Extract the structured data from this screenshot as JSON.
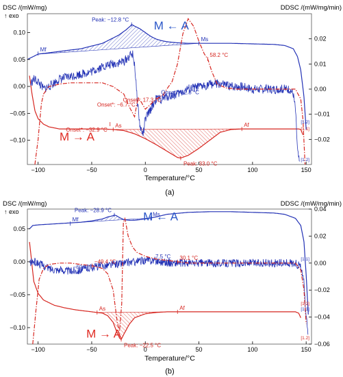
{
  "colors": {
    "blue": "#2231b5",
    "red": "#d6251f",
    "axis": "#000000",
    "frame": "#555555",
    "m_to_a_red": "#e02a22",
    "m_from_a_blue": "#2a56c8"
  },
  "chart_data": [
    {
      "type": "line",
      "panel_label": "(a)",
      "xlabel": "Temperature/°C",
      "ylabel_left": "DSC /(mW/mg)",
      "ylabel_right": "DDSC /(mW/mg/min)",
      "exo_label": "↑ exo",
      "xlim": [
        -110,
        155
      ],
      "ylim_left": [
        -0.145,
        0.135
      ],
      "ylim_right": [
        -0.03,
        0.03
      ],
      "xticks": [
        -100,
        -50,
        0,
        50,
        100,
        150
      ],
      "yticks_left": [
        0.1,
        0.05,
        0.0,
        -0.05,
        -0.1
      ],
      "yticks_right": [
        0.02,
        0.01,
        0.0,
        -0.01,
        -0.02
      ],
      "cycle_labels": [
        "[1.2]",
        "[1.1]",
        "[1.2]"
      ],
      "series": [
        {
          "name": "",
          "axis": "left",
          "color": "blue",
          "style": "solid",
          "x": [
            -110,
            -100,
            -80,
            -60,
            -40,
            -25,
            -18,
            -14,
            -12.8,
            -10,
            -5,
            0,
            5,
            10,
            15,
            20,
            25,
            30,
            40,
            50,
            60,
            80,
            100,
            120,
            130,
            138,
            142,
            145,
            148,
            150
          ],
          "y": [
            0.05,
            0.06,
            0.065,
            0.07,
            0.08,
            0.095,
            0.105,
            0.112,
            0.115,
            0.112,
            0.107,
            0.1,
            0.093,
            0.088,
            0.085,
            0.083,
            0.082,
            0.081,
            0.08,
            0.08,
            0.08,
            0.08,
            0.079,
            0.078,
            0.076,
            0.07,
            0.055,
            0.03,
            -0.02,
            -0.08
          ]
        },
        {
          "name": "",
          "axis": "left",
          "color": "red",
          "style": "solid",
          "x": [
            -108,
            -106,
            -103,
            -100,
            -95,
            -90,
            -80,
            -70,
            -60,
            -50,
            -40,
            -30,
            -20,
            -10,
            0,
            10,
            20,
            30,
            33,
            40,
            50,
            60,
            70,
            80,
            90,
            100,
            110,
            120,
            130,
            135,
            140,
            143,
            145,
            147
          ],
          "y": [
            0.02,
            -0.01,
            -0.045,
            -0.06,
            -0.07,
            -0.075,
            -0.079,
            -0.079,
            -0.079,
            -0.079,
            -0.079,
            -0.08,
            -0.082,
            -0.088,
            -0.097,
            -0.108,
            -0.12,
            -0.132,
            -0.133,
            -0.128,
            -0.115,
            -0.1,
            -0.085,
            -0.08,
            -0.079,
            -0.079,
            -0.079,
            -0.079,
            -0.079,
            -0.079,
            -0.079,
            -0.079,
            -0.08,
            -0.09
          ]
        },
        {
          "name": "",
          "axis": "right",
          "color": "blue",
          "style": "noisy",
          "x": [
            -107,
            -104,
            -100,
            -95,
            -90,
            -80,
            -70,
            -60,
            -50,
            -40,
            -30,
            -20,
            -15,
            -12,
            -10,
            -8,
            -5,
            -2,
            0,
            5,
            10,
            15,
            20,
            30,
            40,
            52.8,
            60,
            70,
            80,
            90,
            100,
            110,
            120,
            130,
            135,
            138,
            140,
            142,
            144
          ],
          "y": [
            0.002,
            0.004,
            0.003,
            0.0,
            0.001,
            0.004,
            0.005,
            0.006,
            0.007,
            0.009,
            0.01,
            0.011,
            0.013,
            0.014,
            0.01,
            -0.002,
            -0.015,
            -0.018,
            -0.012,
            -0.008,
            -0.004,
            -0.004,
            -0.003,
            -0.002,
            0.0,
            0.001,
            0.002,
            0.002,
            0.001,
            0.001,
            0.0,
            0.0,
            0.0,
            0.0,
            0.0,
            -0.002,
            -0.008,
            -0.025,
            -0.03
          ]
        },
        {
          "name": "",
          "axis": "right",
          "color": "red",
          "style": "dashdot",
          "x": [
            -103,
            -100,
            -97,
            -95,
            -90,
            -80,
            -70,
            -60,
            -50,
            -40,
            -30,
            -20,
            -15,
            -10,
            -8,
            -6.7,
            -4,
            0,
            5,
            10,
            17.3,
            20,
            25,
            30,
            35,
            40,
            45,
            50,
            55,
            58.2,
            62,
            67,
            75,
            85,
            100,
            120,
            140,
            145,
            147,
            149
          ],
          "y": [
            -0.03,
            -0.02,
            -0.006,
            -0.002,
            0.001,
            0.002,
            0.0025,
            0.0025,
            0.0025,
            0.0025,
            0.001,
            -0.002,
            -0.007,
            -0.011,
            -0.006,
            -0.004,
            -0.005,
            -0.008,
            -0.006,
            -0.004,
            -0.002,
            0.0,
            0.003,
            0.01,
            0.022,
            0.028,
            0.025,
            0.019,
            0.014,
            0.012,
            0.007,
            0.002,
            0.0005,
            0.0,
            0.0,
            0.0,
            0.0,
            -0.004,
            -0.012,
            -0.03
          ]
        }
      ],
      "annotations": [
        {
          "text": "Peak: −12.8 °C",
          "x": -12.8,
          "y": 0.115,
          "color": "blue",
          "axis": "left"
        },
        {
          "text": "M ← A",
          "x": 8,
          "y": 0.112,
          "color": "blue",
          "axis": "left",
          "large": true
        },
        {
          "text": "Mf",
          "x": -100,
          "y": 0.061,
          "color": "blue",
          "axis": "left"
        },
        {
          "text": "Ms",
          "x": 50,
          "y": 0.08,
          "color": "blue",
          "axis": "left"
        },
        {
          "text": "58.2 °C",
          "x": 58.2,
          "y": 0.012,
          "color": "red",
          "axis": "right"
        },
        {
          "text": "Onset*: 17.3 °C",
          "x": 17.3,
          "y": -0.002,
          "color": "red",
          "axis": "right"
        },
        {
          "text": "Onset*: −6.7 °C",
          "x": -6.7,
          "y": -0.004,
          "color": "red",
          "axis": "right"
        },
        {
          "text": "Onset*: −32.9 °C",
          "x": -32.9,
          "y": -0.07,
          "color": "red",
          "axis": "left"
        },
        {
          "text": "Onset*: 52.8 °C",
          "x": 52.8,
          "y": 0.001,
          "color": "blue",
          "axis": "right"
        },
        {
          "text": "As",
          "x": -30,
          "y": -0.08,
          "color": "red",
          "axis": "left"
        },
        {
          "text": "Af",
          "x": 90,
          "y": -0.079,
          "color": "red",
          "axis": "left"
        },
        {
          "text": "M → A",
          "x": -80,
          "y": -0.094,
          "color": "red",
          "axis": "left",
          "large": true
        },
        {
          "text": "Peak: 33.0 °C",
          "x": 33,
          "y": -0.133,
          "color": "red",
          "axis": "left"
        }
      ],
      "hatch_regions": [
        {
          "series_index": 0,
          "x_from": -100,
          "x_to": 50,
          "baseline": "linear",
          "color": "blue"
        },
        {
          "series_index": 1,
          "x_from": -30,
          "x_to": 90,
          "baseline": "linear",
          "color": "red"
        }
      ]
    },
    {
      "type": "line",
      "panel_label": "(b)",
      "xlabel": "Temperature/°C",
      "ylabel_left": "DSC /(mW/mg)",
      "ylabel_right": "DDSC /(mW/mg/min)",
      "exo_label": "↑ exo",
      "xlim": [
        -110,
        155
      ],
      "ylim_left": [
        -0.125,
        0.08
      ],
      "ylim_right": [
        -0.06,
        0.04
      ],
      "xticks": [
        -100,
        -50,
        0,
        50,
        100,
        150
      ],
      "yticks_left": [
        0.05,
        0.0,
        -0.05,
        -0.1
      ],
      "yticks_right": [
        0.04,
        0.02,
        0.0,
        -0.02,
        -0.04,
        -0.06
      ],
      "cycle_labels": [
        "[1.1]",
        "[1.2]",
        "[1.1]",
        "[1.2]"
      ],
      "series": [
        {
          "name": "",
          "axis": "left",
          "color": "blue",
          "style": "solid",
          "x": [
            -108,
            -105,
            -100,
            -80,
            -60,
            -50,
            -40,
            -35,
            -30,
            -28.9,
            -27,
            -24,
            -20,
            -15,
            -10,
            -5,
            0,
            10,
            20,
            40,
            60,
            80,
            100,
            120,
            130,
            140,
            145,
            148,
            150,
            152
          ],
          "y": [
            0.05,
            0.055,
            0.056,
            0.058,
            0.06,
            0.062,
            0.065,
            0.068,
            0.07,
            0.071,
            0.07,
            0.067,
            0.064,
            0.063,
            0.063,
            0.064,
            0.065,
            0.068,
            0.072,
            0.075,
            0.076,
            0.076,
            0.075,
            0.074,
            0.072,
            0.066,
            0.055,
            0.03,
            -0.02,
            -0.08
          ]
        },
        {
          "name": "",
          "axis": "left",
          "color": "red",
          "style": "solid",
          "x": [
            -108,
            -106,
            -104,
            -100,
            -95,
            -85,
            -75,
            -65,
            -55,
            -50,
            -45,
            -40,
            -35,
            -30,
            -27,
            -24,
            -22.5,
            -20,
            -15,
            -10,
            0,
            10,
            20,
            30,
            50,
            70,
            100,
            130,
            140,
            143,
            145
          ],
          "y": [
            0.03,
            0.0,
            -0.03,
            -0.048,
            -0.058,
            -0.066,
            -0.07,
            -0.073,
            -0.075,
            -0.076,
            -0.077,
            -0.078,
            -0.082,
            -0.092,
            -0.105,
            -0.116,
            -0.118,
            -0.11,
            -0.095,
            -0.085,
            -0.079,
            -0.077,
            -0.076,
            -0.076,
            -0.076,
            -0.076,
            -0.076,
            -0.076,
            -0.076,
            -0.078,
            -0.085
          ]
        },
        {
          "name": "",
          "axis": "right",
          "color": "blue",
          "style": "noisy",
          "x": [
            -108,
            -105,
            -100,
            -90,
            -80,
            -69.4,
            -60,
            -50,
            -40,
            -30,
            -20,
            -10,
            0,
            7.5,
            15,
            25,
            40,
            60,
            80,
            100,
            120,
            140,
            145,
            148,
            150,
            152
          ],
          "y": [
            0.0,
            0.001,
            0.0,
            -0.004,
            -0.005,
            -0.006,
            -0.005,
            -0.003,
            -0.002,
            -0.001,
            0.0,
            0.001,
            0.002,
            0.002,
            0.001,
            0.0,
            0.0,
            0.0,
            0.0,
            0.0,
            0.0,
            0.0,
            -0.003,
            -0.015,
            -0.04,
            -0.055
          ]
        },
        {
          "name": "",
          "axis": "right",
          "color": "red",
          "style": "dashdot",
          "x": [
            -105,
            -102,
            -99,
            -95,
            -90,
            -80,
            -70,
            -60,
            -49.4,
            -40,
            -35,
            -30,
            -26,
            -24,
            -22,
            -20.5,
            -19,
            -16,
            -12,
            -8,
            0,
            10,
            20,
            30.1,
            40,
            60,
            80,
            100,
            130,
            140,
            145,
            148,
            150
          ],
          "y": [
            -0.06,
            -0.035,
            -0.012,
            -0.004,
            -0.001,
            0.0,
            0.0,
            -0.001,
            -0.002,
            -0.004,
            -0.008,
            -0.02,
            -0.045,
            -0.05,
            -0.03,
            0.03,
            0.033,
            0.02,
            0.012,
            0.008,
            0.005,
            0.003,
            0.002,
            0.001,
            0.0,
            0.0,
            0.0,
            0.0,
            0.0,
            0.0,
            -0.005,
            -0.02,
            -0.045
          ]
        }
      ],
      "annotations": [
        {
          "text": "Peak: −28.9 °C",
          "x": -28.9,
          "y": 0.071,
          "color": "blue",
          "axis": "left"
        },
        {
          "text": "M ← A",
          "x": -2,
          "y": 0.068,
          "color": "blue",
          "axis": "left",
          "large": true
        },
        {
          "text": "Mf",
          "x": -70,
          "y": 0.058,
          "color": "blue",
          "axis": "left"
        },
        {
          "text": "Ms",
          "x": 5,
          "y": 0.066,
          "color": "blue",
          "axis": "left"
        },
        {
          "text": "−69.4 °C",
          "x": -69.4,
          "y": -0.006,
          "color": "blue",
          "axis": "right"
        },
        {
          "text": "−49.4 °C",
          "x": -49.4,
          "y": -0.002,
          "color": "red",
          "axis": "right"
        },
        {
          "text": "7.5 °C",
          "x": 7.5,
          "y": 0.002,
          "color": "blue",
          "axis": "right"
        },
        {
          "text": "30.1 °C",
          "x": 30.1,
          "y": 0.001,
          "color": "red",
          "axis": "right"
        },
        {
          "text": "As",
          "x": -45,
          "y": -0.077,
          "color": "red",
          "axis": "left"
        },
        {
          "text": "Af",
          "x": 30,
          "y": -0.076,
          "color": "red",
          "axis": "left"
        },
        {
          "text": "M → A",
          "x": -55,
          "y": -0.11,
          "color": "red",
          "axis": "left",
          "large": true
        },
        {
          "text": "Peak: −22.5 °C",
          "x": -22.5,
          "y": -0.118,
          "color": "red",
          "axis": "left"
        }
      ],
      "hatch_regions": [
        {
          "series_index": 0,
          "x_from": -70,
          "x_to": 5,
          "baseline": "linear",
          "color": "blue"
        },
        {
          "series_index": 1,
          "x_from": -45,
          "x_to": 30,
          "baseline": "linear",
          "color": "red"
        }
      ]
    }
  ]
}
